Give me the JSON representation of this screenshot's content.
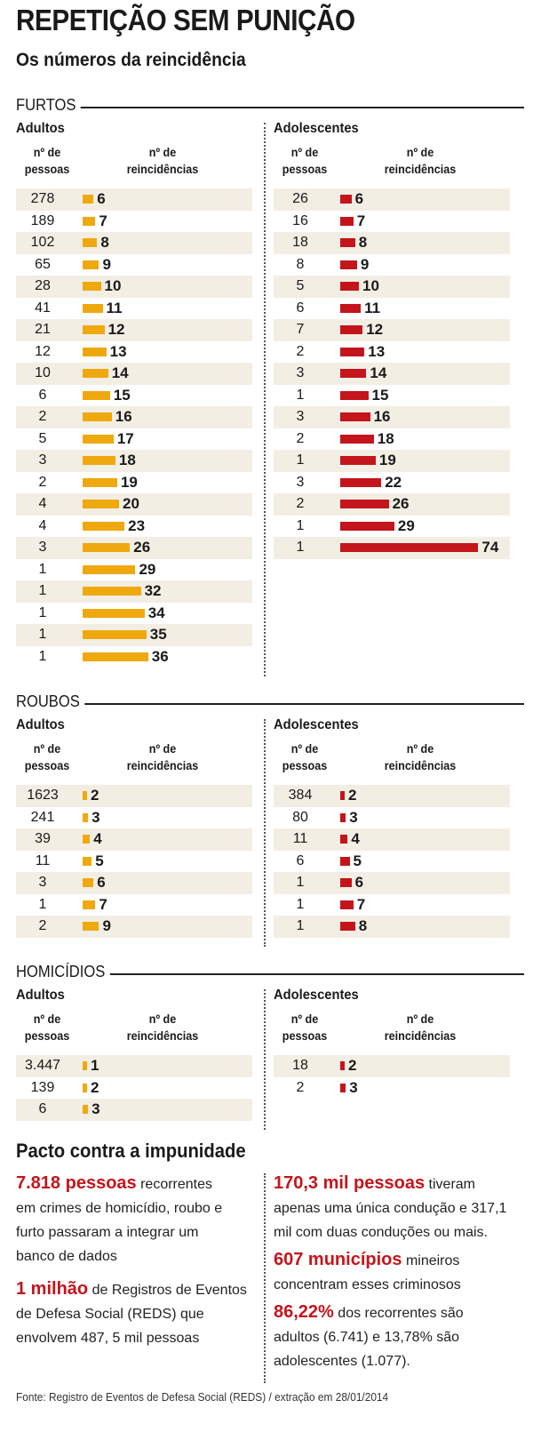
{
  "title": "REPETIÇÃO SEM PUNIÇÃO",
  "subtitle": "Os números da reincidência",
  "headers": {
    "people": "nº de pessoas",
    "people_l1": "nº de",
    "people_l2": "pessoas",
    "recid_l1": "nº de",
    "recid_l2": "reincidências"
  },
  "colors": {
    "adults": "#efa90e",
    "teens": "#c4151c"
  },
  "chart_data": [
    {
      "type": "bar",
      "section": "FURTOS",
      "group": "Adultos",
      "categories": [
        "278",
        "189",
        "102",
        "65",
        "28",
        "41",
        "21",
        "12",
        "10",
        "6",
        "2",
        "5",
        "3",
        "2",
        "4",
        "4",
        "3",
        "1",
        "1",
        "1",
        "1",
        "1"
      ],
      "values": [
        6,
        7,
        8,
        9,
        10,
        11,
        12,
        13,
        14,
        15,
        16,
        17,
        18,
        19,
        20,
        23,
        26,
        29,
        32,
        34,
        35,
        36
      ]
    },
    {
      "type": "bar",
      "section": "FURTOS",
      "group": "Adolescentes",
      "categories": [
        "26",
        "16",
        "18",
        "8",
        "5",
        "6",
        "7",
        "2",
        "3",
        "1",
        "3",
        "2",
        "1",
        "3",
        "2",
        "1",
        "1"
      ],
      "values": [
        6,
        7,
        8,
        9,
        10,
        11,
        12,
        13,
        14,
        15,
        16,
        18,
        19,
        22,
        26,
        29,
        74
      ]
    },
    {
      "type": "bar",
      "section": "ROUBOS",
      "group": "Adultos",
      "categories": [
        "1623",
        "241",
        "39",
        "11",
        "3",
        "1",
        "2"
      ],
      "values": [
        2,
        3,
        4,
        5,
        6,
        7,
        9
      ]
    },
    {
      "type": "bar",
      "section": "ROUBOS",
      "group": "Adolescentes",
      "categories": [
        "384",
        "80",
        "11",
        "6",
        "1",
        "1",
        "1"
      ],
      "values": [
        2,
        3,
        4,
        5,
        6,
        7,
        8
      ]
    },
    {
      "type": "bar",
      "section": "HOMICÍDIOS",
      "group": "Adultos",
      "categories": [
        "3.447",
        "139",
        "6"
      ],
      "values": [
        1,
        2,
        3
      ]
    },
    {
      "type": "bar",
      "section": "HOMICÍDIOS",
      "group": "Adolescentes",
      "categories": [
        "18",
        "2"
      ],
      "values": [
        2,
        3
      ]
    }
  ],
  "pacto": {
    "title": "Pacto contra a impunidade",
    "p1_big": "7.818 pessoas",
    "p1_l1": " recorrentes",
    "p1_l2": "em crimes de homicídio, roubo e",
    "p1_l3": "furto passaram a integrar um",
    "p1_l4": "banco de dados",
    "p2_big": "1 milhão",
    "p2_l1": " de Registros de Eventos",
    "p2_l2": "de Defesa Social (REDS) que",
    "p2_l3": "envolvem 487, 5 mil pessoas",
    "p3_big": "170,3 mil pessoas",
    "p3_l1": " tiveram",
    "p3_l2": "apenas uma única condução e 317,1",
    "p3_l3": "mil com duas conduções ou mais.",
    "p4_big": "607 municípios",
    "p4_l1": " mineiros",
    "p4_l2": "concentram esses criminosos",
    "p5_big": "86,22%",
    "p5_l1": " dos recorrentes são",
    "p5_l2": "adultos (6.741) e 13,78% são",
    "p5_l3": "adolescentes (1.077)."
  },
  "source": "Fonte: Registro de Eventos de Defesa Social (REDS) / extração em 28/01/2014"
}
